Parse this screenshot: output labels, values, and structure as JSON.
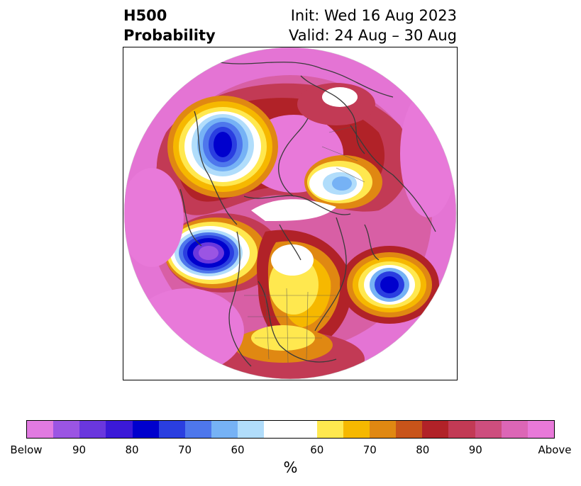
{
  "title": {
    "left_line1": "H500",
    "left_line2": "Probability",
    "right_line1": "Init: Wed 16 Aug 2023",
    "right_line2": "Valid: 24 Aug – 30 Aug"
  },
  "colorbar": {
    "label": "%",
    "tick_labels": [
      "Below",
      "90",
      "80",
      "70",
      "60",
      "60",
      "70",
      "80",
      "90",
      "Above"
    ],
    "colors": [
      "#e17ae1",
      "#9b55e3",
      "#6a37de",
      "#3b19d8",
      "#0000cd",
      "#2a3ee0",
      "#4e77ec",
      "#76b2f5",
      "#b1ddfb",
      "#ffffff",
      "#ffe84f",
      "#f6b800",
      "#e08812",
      "#c8541a",
      "#b12228",
      "#c23a55",
      "#cd4e7e",
      "#dc66b6",
      "#e879d9"
    ]
  },
  "map": {
    "projection": "north polar stereographic",
    "field": "500 hPa height anomaly probability"
  }
}
